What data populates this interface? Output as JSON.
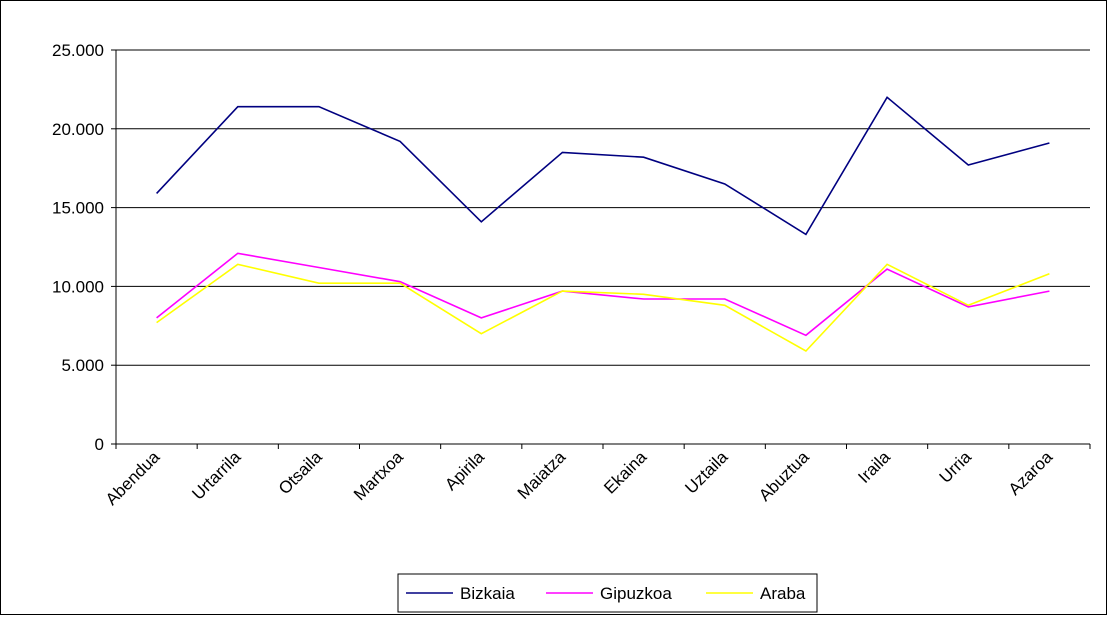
{
  "chart_data": {
    "type": "line",
    "categories": [
      "Abendua",
      "Urtarrila",
      "Otsaila",
      "Martxoa",
      "Apirila",
      "Maiatza",
      "Ekaina",
      "Uztaila",
      "Abuztua",
      "Iraila",
      "Urria",
      "Azaroa"
    ],
    "series": [
      {
        "name": "Bizkaia",
        "color": "#000080",
        "values": [
          15900,
          21400,
          21400,
          19200,
          14100,
          18500,
          18200,
          16500,
          13300,
          22000,
          17700,
          19100
        ]
      },
      {
        "name": "Gipuzkoa",
        "color": "#ff00ff",
        "values": [
          8000,
          12100,
          11200,
          10300,
          8000,
          9700,
          9200,
          9200,
          6900,
          11100,
          8700,
          9700
        ]
      },
      {
        "name": "Araba",
        "color": "#ffff00",
        "values": [
          7700,
          11400,
          10200,
          10200,
          7000,
          9700,
          9500,
          8800,
          5900,
          11400,
          8800,
          10800
        ]
      }
    ],
    "ylim": [
      0,
      25000
    ],
    "yticks": [
      {
        "value": 0,
        "label": "0"
      },
      {
        "value": 5000,
        "label": "5.000"
      },
      {
        "value": 10000,
        "label": "10.000"
      },
      {
        "value": 15000,
        "label": "15.000"
      },
      {
        "value": 20000,
        "label": "20.000"
      },
      {
        "value": 25000,
        "label": "25.000"
      }
    ],
    "grid": true,
    "legend_position": "bottom"
  }
}
